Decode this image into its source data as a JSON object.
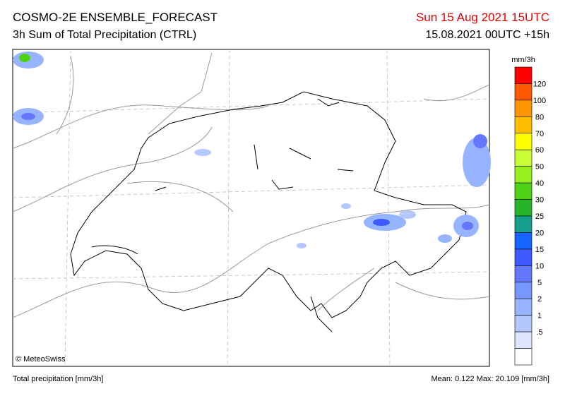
{
  "header": {
    "title": "COSMO-2E ENSEMBLE_FORECAST",
    "subtitle": "3h Sum of Total Precipitation (CTRL)",
    "valid_time": "Sun 15 Aug 2021 15UTC",
    "run_time": "15.08.2021 00UTC +15h"
  },
  "map": {
    "credit": "© MeteoSwiss"
  },
  "legend": {
    "unit": "mm/3h",
    "labels": [
      "120",
      "100",
      "80",
      "70",
      "60",
      "50",
      "40",
      "30",
      "25",
      "20",
      "15",
      "10",
      "5",
      "2",
      "1",
      ".5"
    ],
    "colors": [
      "#ff0000",
      "#ff5a00",
      "#ff9600",
      "#ffbe00",
      "#ffff00",
      "#c8ff32",
      "#96f01e",
      "#50d214",
      "#28b428",
      "#14a08c",
      "#1464ff",
      "#3c5aff",
      "#6478ff",
      "#7896ff",
      "#96b4ff",
      "#b4c8ff",
      "#dce4ff",
      "#ffffff"
    ]
  },
  "footer": {
    "left": "Total precipitation [mm/3h]",
    "right": "Mean:  0.122 Max: 20.109 [mm/3h]"
  }
}
